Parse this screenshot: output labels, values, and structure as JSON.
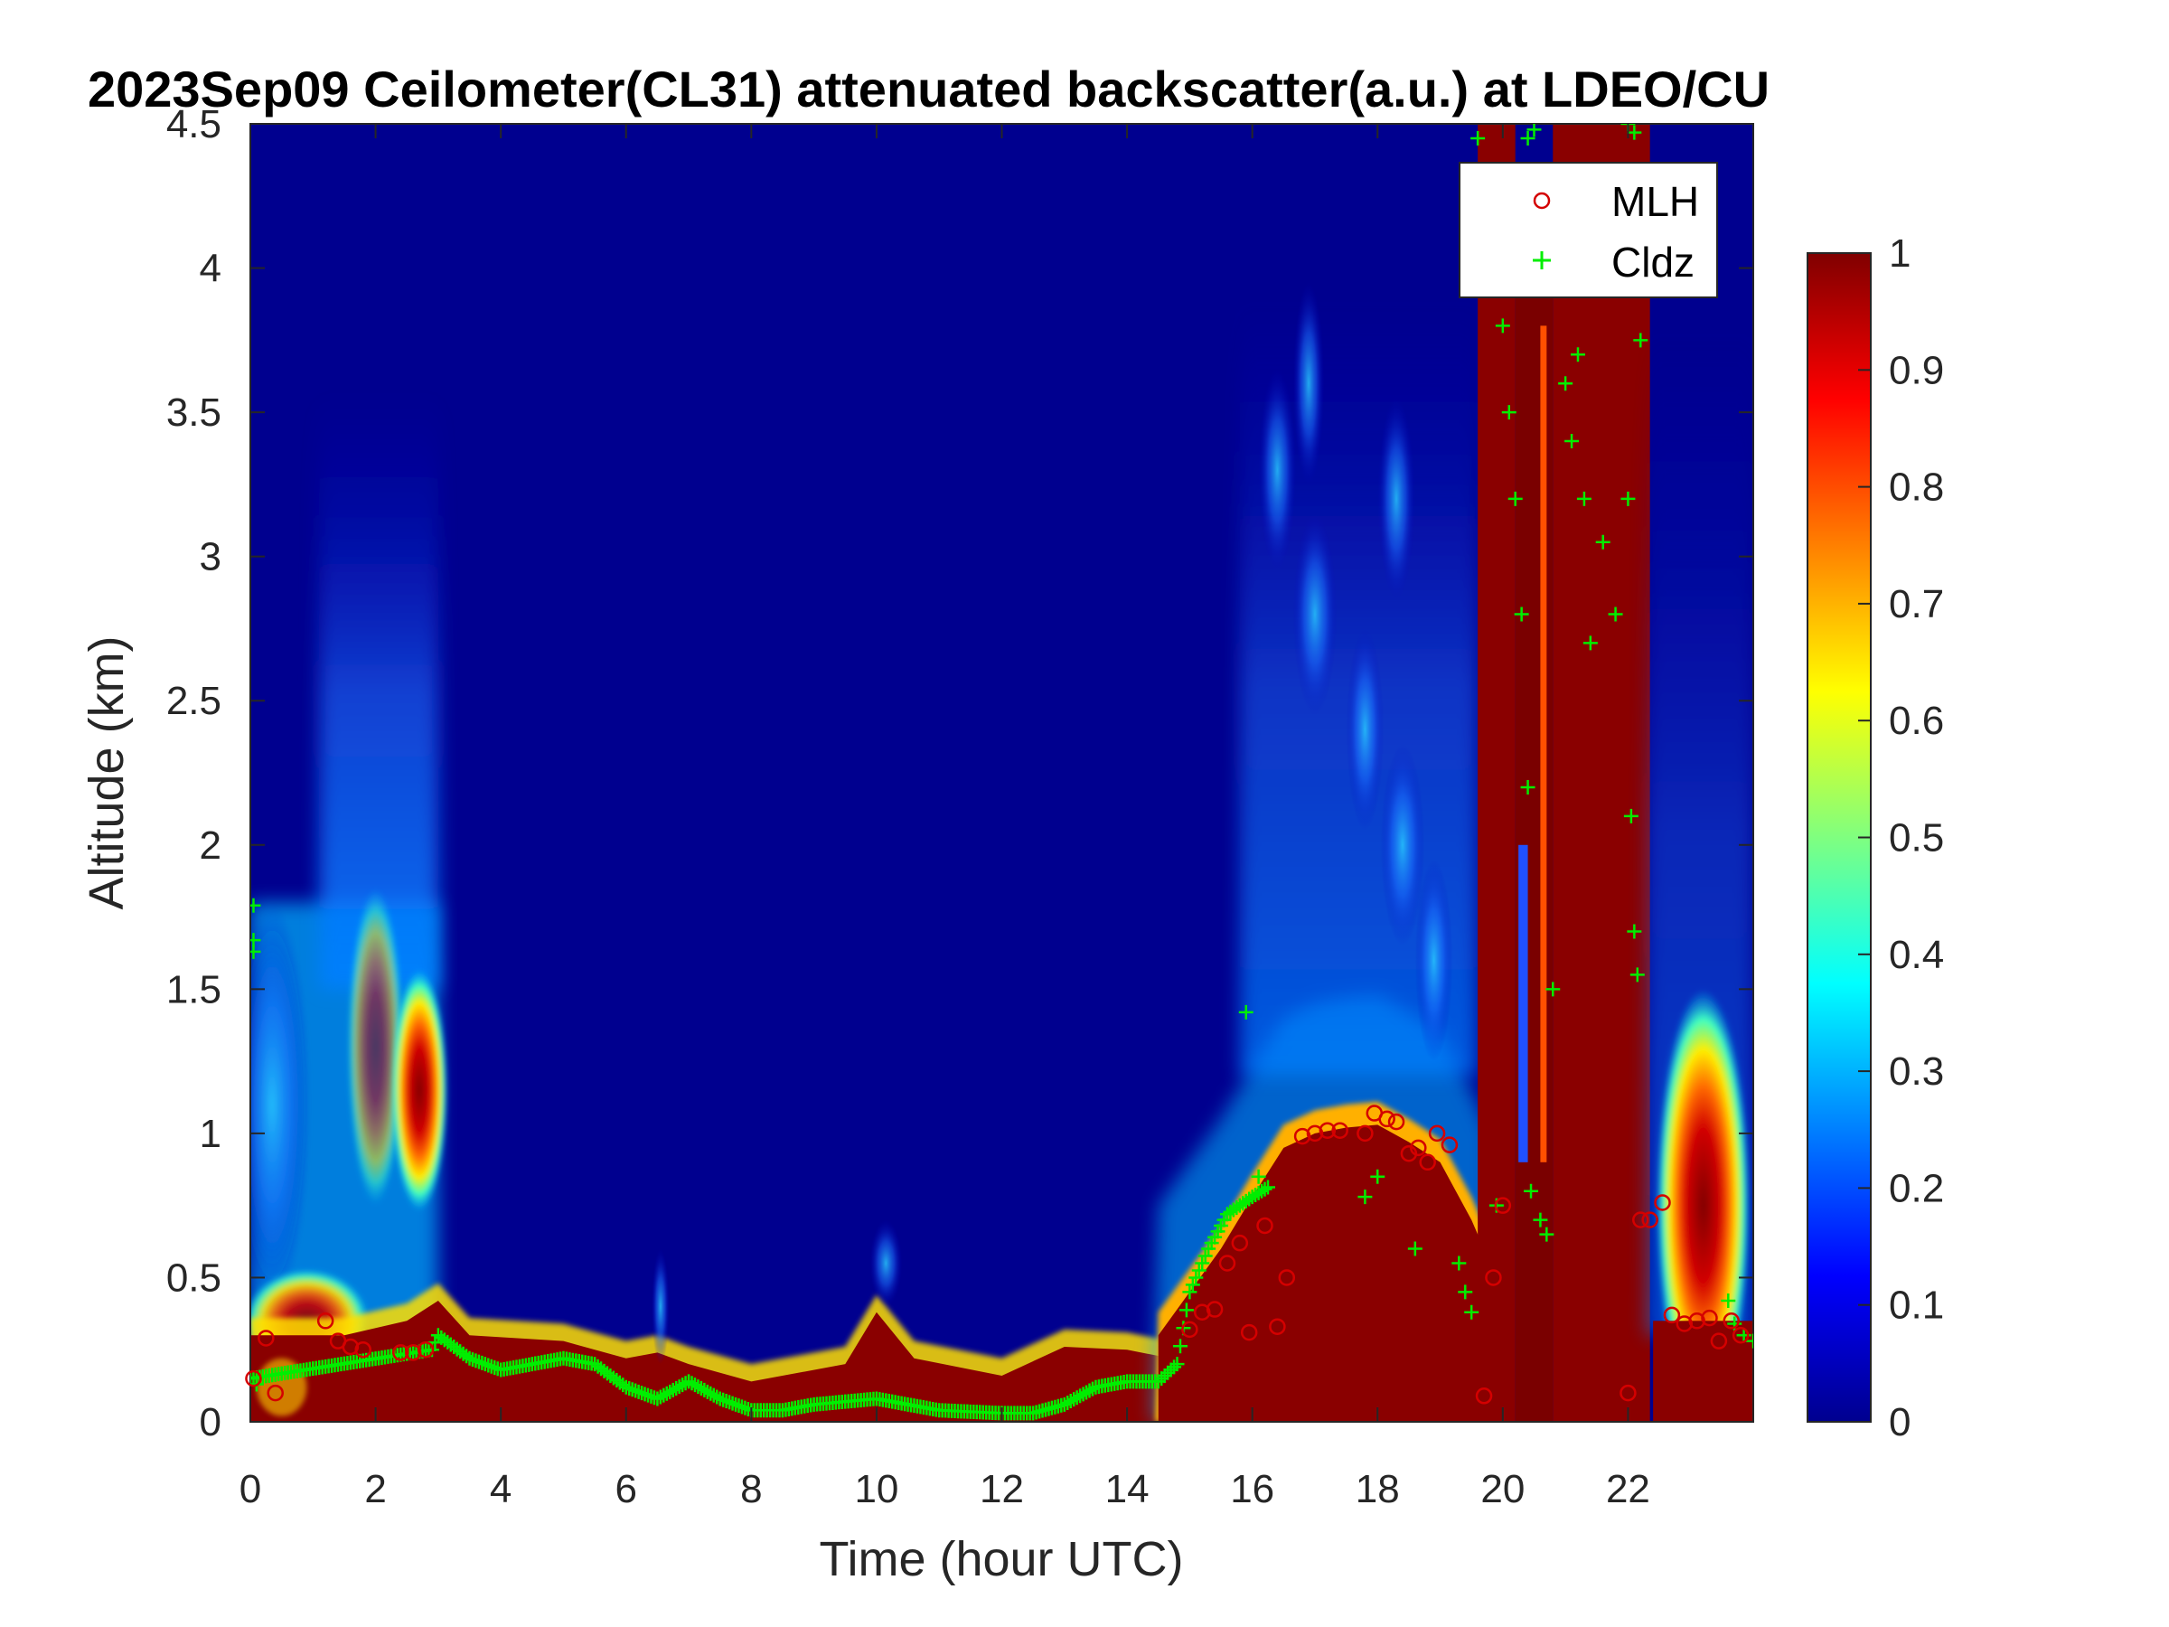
{
  "chart_data": {
    "type": "heatmap",
    "title": "2023Sep09 Ceilometer(CL31) attenuated backscatter(a.u.) at LDEO/CU",
    "xlabel": "Time (hour UTC)",
    "ylabel": "Altitude (km)",
    "xlim": [
      0,
      24
    ],
    "ylim": [
      0,
      4.5
    ],
    "xticks": [
      0,
      2,
      4,
      6,
      8,
      10,
      12,
      14,
      16,
      18,
      20,
      22
    ],
    "xtick_labels": [
      "0",
      "2",
      "4",
      "6",
      "8",
      "10",
      "12",
      "14",
      "16",
      "18",
      "20",
      "22"
    ],
    "yticks": [
      0,
      0.5,
      1,
      1.5,
      2,
      2.5,
      3,
      3.5,
      4,
      4.5
    ],
    "ytick_labels": [
      "0",
      "0.5",
      "1",
      "1.5",
      "2",
      "2.5",
      "3",
      "3.5",
      "4",
      "4.5"
    ],
    "colorbar": {
      "colormap": "jet",
      "range": [
        0,
        1
      ],
      "ticks": [
        0,
        0.1,
        0.2,
        0.3,
        0.4,
        0.5,
        0.6,
        0.7,
        0.8,
        0.9,
        1
      ],
      "tick_labels": [
        "0",
        "0.1",
        "0.2",
        "0.3",
        "0.4",
        "0.5",
        "0.6",
        "0.7",
        "0.8",
        "0.9",
        "1"
      ]
    },
    "legend": {
      "placement": "top-right",
      "entries": [
        {
          "label": "MLH",
          "marker": "circle",
          "color": "#d40000"
        },
        {
          "label": "Cldz",
          "marker": "plus",
          "color": "#00ee00"
        }
      ]
    },
    "series": [
      {
        "name": "MLH",
        "marker": "circle",
        "color": "#d40000",
        "points": [
          [
            0.05,
            0.15
          ],
          [
            0.25,
            0.29
          ],
          [
            0.4,
            0.1
          ],
          [
            1.2,
            0.35
          ],
          [
            1.4,
            0.28
          ],
          [
            1.6,
            0.26
          ],
          [
            1.8,
            0.25
          ],
          [
            2.4,
            0.24
          ],
          [
            2.6,
            0.24
          ],
          [
            2.8,
            0.25
          ],
          [
            15.0,
            0.32
          ],
          [
            15.2,
            0.38
          ],
          [
            15.4,
            0.39
          ],
          [
            15.6,
            0.55
          ],
          [
            15.8,
            0.62
          ],
          [
            15.95,
            0.31
          ],
          [
            16.2,
            0.68
          ],
          [
            16.4,
            0.33
          ],
          [
            16.55,
            0.5
          ],
          [
            16.8,
            0.99
          ],
          [
            17.0,
            1.0
          ],
          [
            17.2,
            1.01
          ],
          [
            17.4,
            1.01
          ],
          [
            17.8,
            1.0
          ],
          [
            17.95,
            1.07
          ],
          [
            18.15,
            1.05
          ],
          [
            18.3,
            1.04
          ],
          [
            18.5,
            0.93
          ],
          [
            18.65,
            0.95
          ],
          [
            18.8,
            0.9
          ],
          [
            18.95,
            1.0
          ],
          [
            19.15,
            0.96
          ],
          [
            19.7,
            0.09
          ],
          [
            19.85,
            0.5
          ],
          [
            20.0,
            0.75
          ],
          [
            22.0,
            0.1
          ],
          [
            22.2,
            0.7
          ],
          [
            22.35,
            0.7
          ],
          [
            22.55,
            0.76
          ],
          [
            22.7,
            0.37
          ],
          [
            22.9,
            0.34
          ],
          [
            23.1,
            0.35
          ],
          [
            23.3,
            0.36
          ],
          [
            23.45,
            0.28
          ],
          [
            23.65,
            0.35
          ],
          [
            23.8,
            0.3
          ]
        ]
      },
      {
        "name": "Cldz",
        "marker": "plus",
        "color": "#00ee00",
        "profile": [
          [
            0,
            0.15
          ],
          [
            2.9,
            0.25
          ],
          [
            3.0,
            0.3
          ],
          [
            3.5,
            0.22
          ],
          [
            4.0,
            0.18
          ],
          [
            4.5,
            0.2
          ],
          [
            5.0,
            0.22
          ],
          [
            5.5,
            0.2
          ],
          [
            6.0,
            0.12
          ],
          [
            6.5,
            0.08
          ],
          [
            7.0,
            0.14
          ],
          [
            7.5,
            0.08
          ],
          [
            8.0,
            0.04
          ],
          [
            8.5,
            0.04
          ],
          [
            9.0,
            0.06
          ],
          [
            9.5,
            0.07
          ],
          [
            10.0,
            0.08
          ],
          [
            10.5,
            0.06
          ],
          [
            11.0,
            0.04
          ],
          [
            12.0,
            0.03
          ],
          [
            12.5,
            0.03
          ],
          [
            13.0,
            0.06
          ],
          [
            13.5,
            0.12
          ],
          [
            14.0,
            0.14
          ],
          [
            14.5,
            0.14
          ],
          [
            14.8,
            0.2
          ],
          [
            15.0,
            0.45
          ],
          [
            15.3,
            0.6
          ],
          [
            15.6,
            0.72
          ],
          [
            16.0,
            0.78
          ],
          [
            16.3,
            0.82
          ]
        ],
        "points": [
          [
            0.05,
            1.79
          ],
          [
            0.05,
            1.67
          ],
          [
            0.05,
            1.63
          ],
          [
            0.1,
            0.13
          ],
          [
            15.9,
            1.42
          ],
          [
            16.1,
            0.85
          ],
          [
            18.0,
            0.85
          ],
          [
            17.8,
            0.78
          ],
          [
            18.6,
            0.6
          ],
          [
            19.3,
            0.55
          ],
          [
            19.4,
            0.45
          ],
          [
            19.5,
            0.38
          ],
          [
            19.6,
            4.45
          ],
          [
            20.4,
            4.45
          ],
          [
            20.5,
            4.48
          ],
          [
            22.0,
            4.5
          ],
          [
            22.1,
            4.47
          ],
          [
            19.9,
            0.75
          ],
          [
            20.0,
            3.8
          ],
          [
            20.1,
            3.5
          ],
          [
            20.2,
            3.2
          ],
          [
            20.3,
            2.8
          ],
          [
            20.4,
            2.2
          ],
          [
            20.45,
            0.8
          ],
          [
            20.6,
            0.7
          ],
          [
            20.7,
            0.65
          ],
          [
            20.8,
            1.5
          ],
          [
            21.0,
            3.6
          ],
          [
            21.1,
            3.4
          ],
          [
            21.2,
            3.7
          ],
          [
            21.3,
            3.2
          ],
          [
            21.4,
            2.7
          ],
          [
            21.6,
            3.05
          ],
          [
            21.8,
            2.8
          ],
          [
            22.0,
            3.2
          ],
          [
            22.05,
            2.1
          ],
          [
            22.1,
            1.7
          ],
          [
            22.15,
            1.55
          ],
          [
            22.2,
            3.75
          ],
          [
            23.6,
            0.42
          ],
          [
            23.7,
            0.34
          ],
          [
            23.85,
            0.3
          ],
          [
            24.0,
            0.28
          ]
        ]
      }
    ]
  }
}
